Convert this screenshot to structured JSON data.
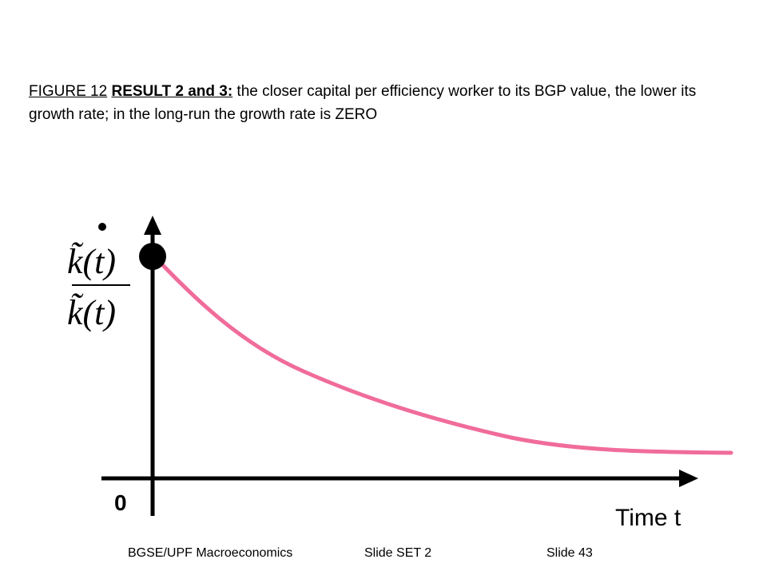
{
  "caption": {
    "figure_label": "FIGURE 12",
    "result_label": "RESULT 2 and 3:",
    "text": " the closer capital per efficiency worker to its BGP value, the lower its growth rate; in the long-run the growth rate is ZERO"
  },
  "axis": {
    "origin_label": "0",
    "x_label": "Time t"
  },
  "ylabel": {
    "numerator": "k̃(t)",
    "denominator": "k̃(t)"
  },
  "colors": {
    "curve": "#f06c9b",
    "axis": "#000000"
  },
  "footer": {
    "course": "BGSE/UPF Macroeconomics",
    "set": "Slide SET 2",
    "slide": "Slide 43"
  }
}
